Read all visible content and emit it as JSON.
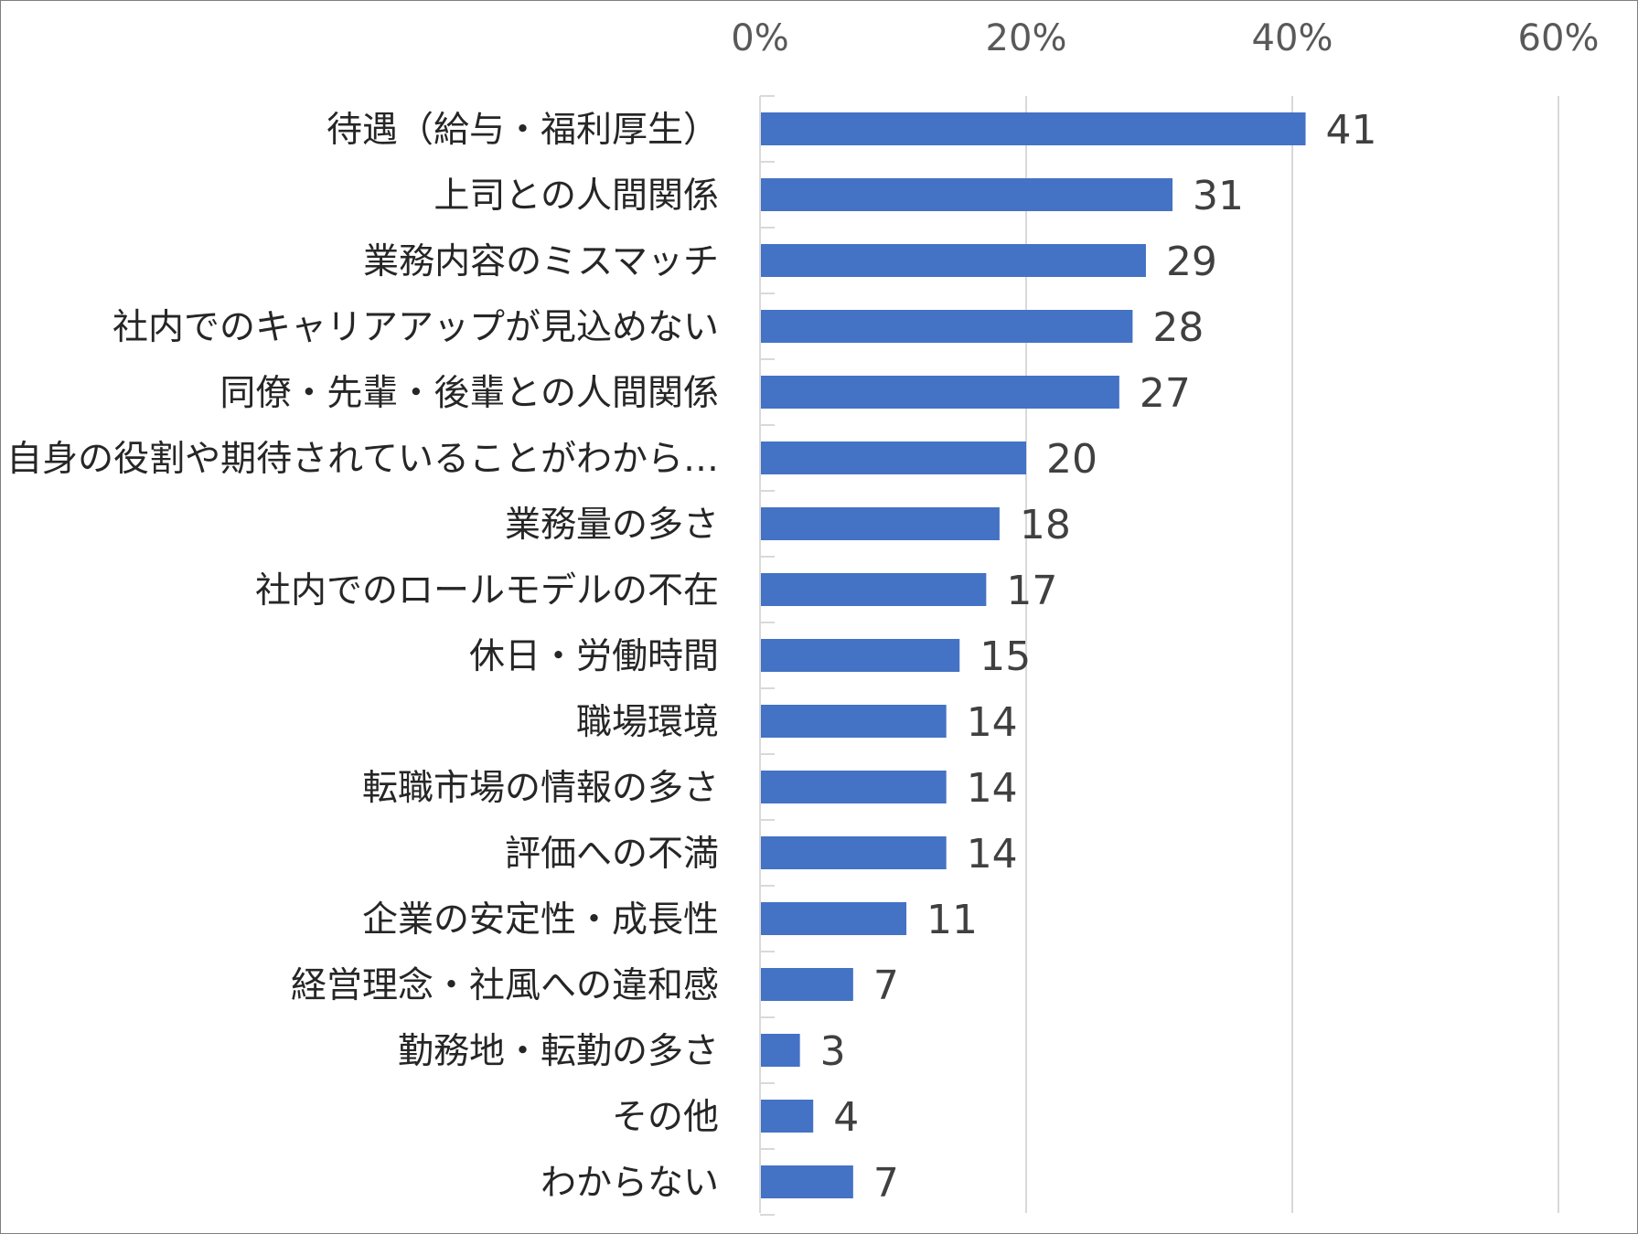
{
  "chart_data": {
    "type": "bar",
    "orientation": "horizontal",
    "categories": [
      "待遇（給与・福利厚生）",
      "上司との人間関係",
      "業務内容のミスマッチ",
      "社内でのキャリアアップが見込めない",
      "同僚・先輩・後輩との人間関係",
      "自身の役割や期待されていることがわから…",
      "業務量の多さ",
      "社内でのロールモデルの不在",
      "休日・労働時間",
      "職場環境",
      "転職市場の情報の多さ",
      "評価への不満",
      "企業の安定性・成長性",
      "経営理念・社風への違和感",
      "勤務地・転勤の多さ",
      "その他",
      "わからない"
    ],
    "values": [
      41,
      31,
      29,
      28,
      27,
      20,
      18,
      17,
      15,
      14,
      14,
      14,
      11,
      7,
      3,
      4,
      7
    ],
    "xlim": [
      0,
      60
    ],
    "x_ticks": [
      0,
      20,
      40,
      60
    ],
    "x_tick_labels": [
      "0%",
      "20%",
      "40%",
      "60%"
    ],
    "x_axis_position": "top",
    "grid": true,
    "legend": "none",
    "bar_color": "#4472c4"
  }
}
